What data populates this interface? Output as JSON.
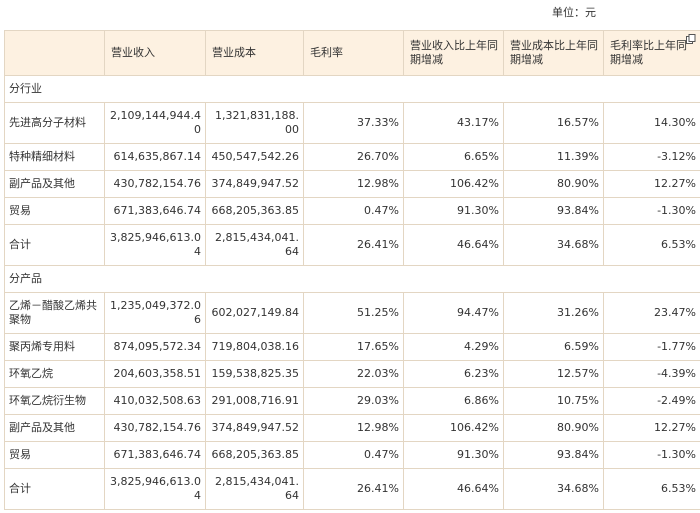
{
  "unit": "单位：元",
  "table": {
    "header": [
      "",
      "营业收入",
      "营业成本",
      "毛利率",
      "营业收入比上年同期增减",
      "营业成本比上年同期增减",
      "毛利率比上年同期增减"
    ],
    "sections": [
      {
        "title": "分行业",
        "rows": [
          [
            "先进高分子材料",
            "2,109,144,944.40",
            "1,321,831,188.00",
            "37.33%",
            "43.17%",
            "16.57%",
            "14.30%"
          ],
          [
            "特种精细材料",
            "614,635,867.14",
            "450,547,542.26",
            "26.70%",
            "6.65%",
            "11.39%",
            "-3.12%"
          ],
          [
            "副产品及其他",
            "430,782,154.76",
            "374,849,947.52",
            "12.98%",
            "106.42%",
            "80.90%",
            "12.27%"
          ],
          [
            "贸易",
            "671,383,646.74",
            "668,205,363.85",
            "0.47%",
            "91.30%",
            "93.84%",
            "-1.30%"
          ],
          [
            "合计",
            "3,825,946,613.04",
            "2,815,434,041.64",
            "26.41%",
            "46.64%",
            "34.68%",
            "6.53%"
          ]
        ]
      },
      {
        "title": "分产品",
        "rows": [
          [
            "乙烯－醋酸乙烯共聚物",
            "1,235,049,372.06",
            "602,027,149.84",
            "51.25%",
            "94.47%",
            "31.26%",
            "23.47%"
          ],
          [
            "聚丙烯专用料",
            "874,095,572.34",
            "719,804,038.16",
            "17.65%",
            "4.29%",
            "6.59%",
            "-1.77%"
          ],
          [
            "环氧乙烷",
            "204,603,358.51",
            "159,538,825.35",
            "22.03%",
            "6.23%",
            "12.57%",
            "-4.39%"
          ],
          [
            "环氧乙烷衍生物",
            "410,032,508.63",
            "291,008,716.91",
            "29.03%",
            "6.86%",
            "10.75%",
            "-2.49%"
          ],
          [
            "副产品及其他",
            "430,782,154.76",
            "374,849,947.52",
            "12.98%",
            "106.42%",
            "80.90%",
            "12.27%"
          ],
          [
            "贸易",
            "671,383,646.74",
            "668,205,363.85",
            "0.47%",
            "91.30%",
            "93.84%",
            "-1.30%"
          ],
          [
            "合计",
            "3,825,946,613.04",
            "2,815,434,041.64",
            "26.41%",
            "46.64%",
            "34.68%",
            "6.53%"
          ]
        ]
      }
    ]
  }
}
